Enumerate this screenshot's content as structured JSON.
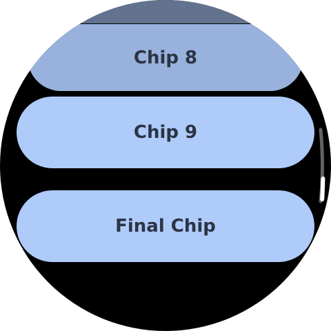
{
  "screen": {
    "background_color": "#000000"
  },
  "chips": {
    "partial_label": "",
    "chip_8_label": "Chip 8",
    "chip_9_label": "Chip 9",
    "final_label": "Final Chip"
  },
  "colors": {
    "chip_default": "#aecbfa",
    "chip_faded": "#98b2dd",
    "chip_dim": "#62728f",
    "chip_text": "#2b3444",
    "scrollbar_track": "#5f6368",
    "scrollbar_thumb": "#ffffff"
  },
  "scroll_indicator": {
    "position_fraction": 0.82
  }
}
